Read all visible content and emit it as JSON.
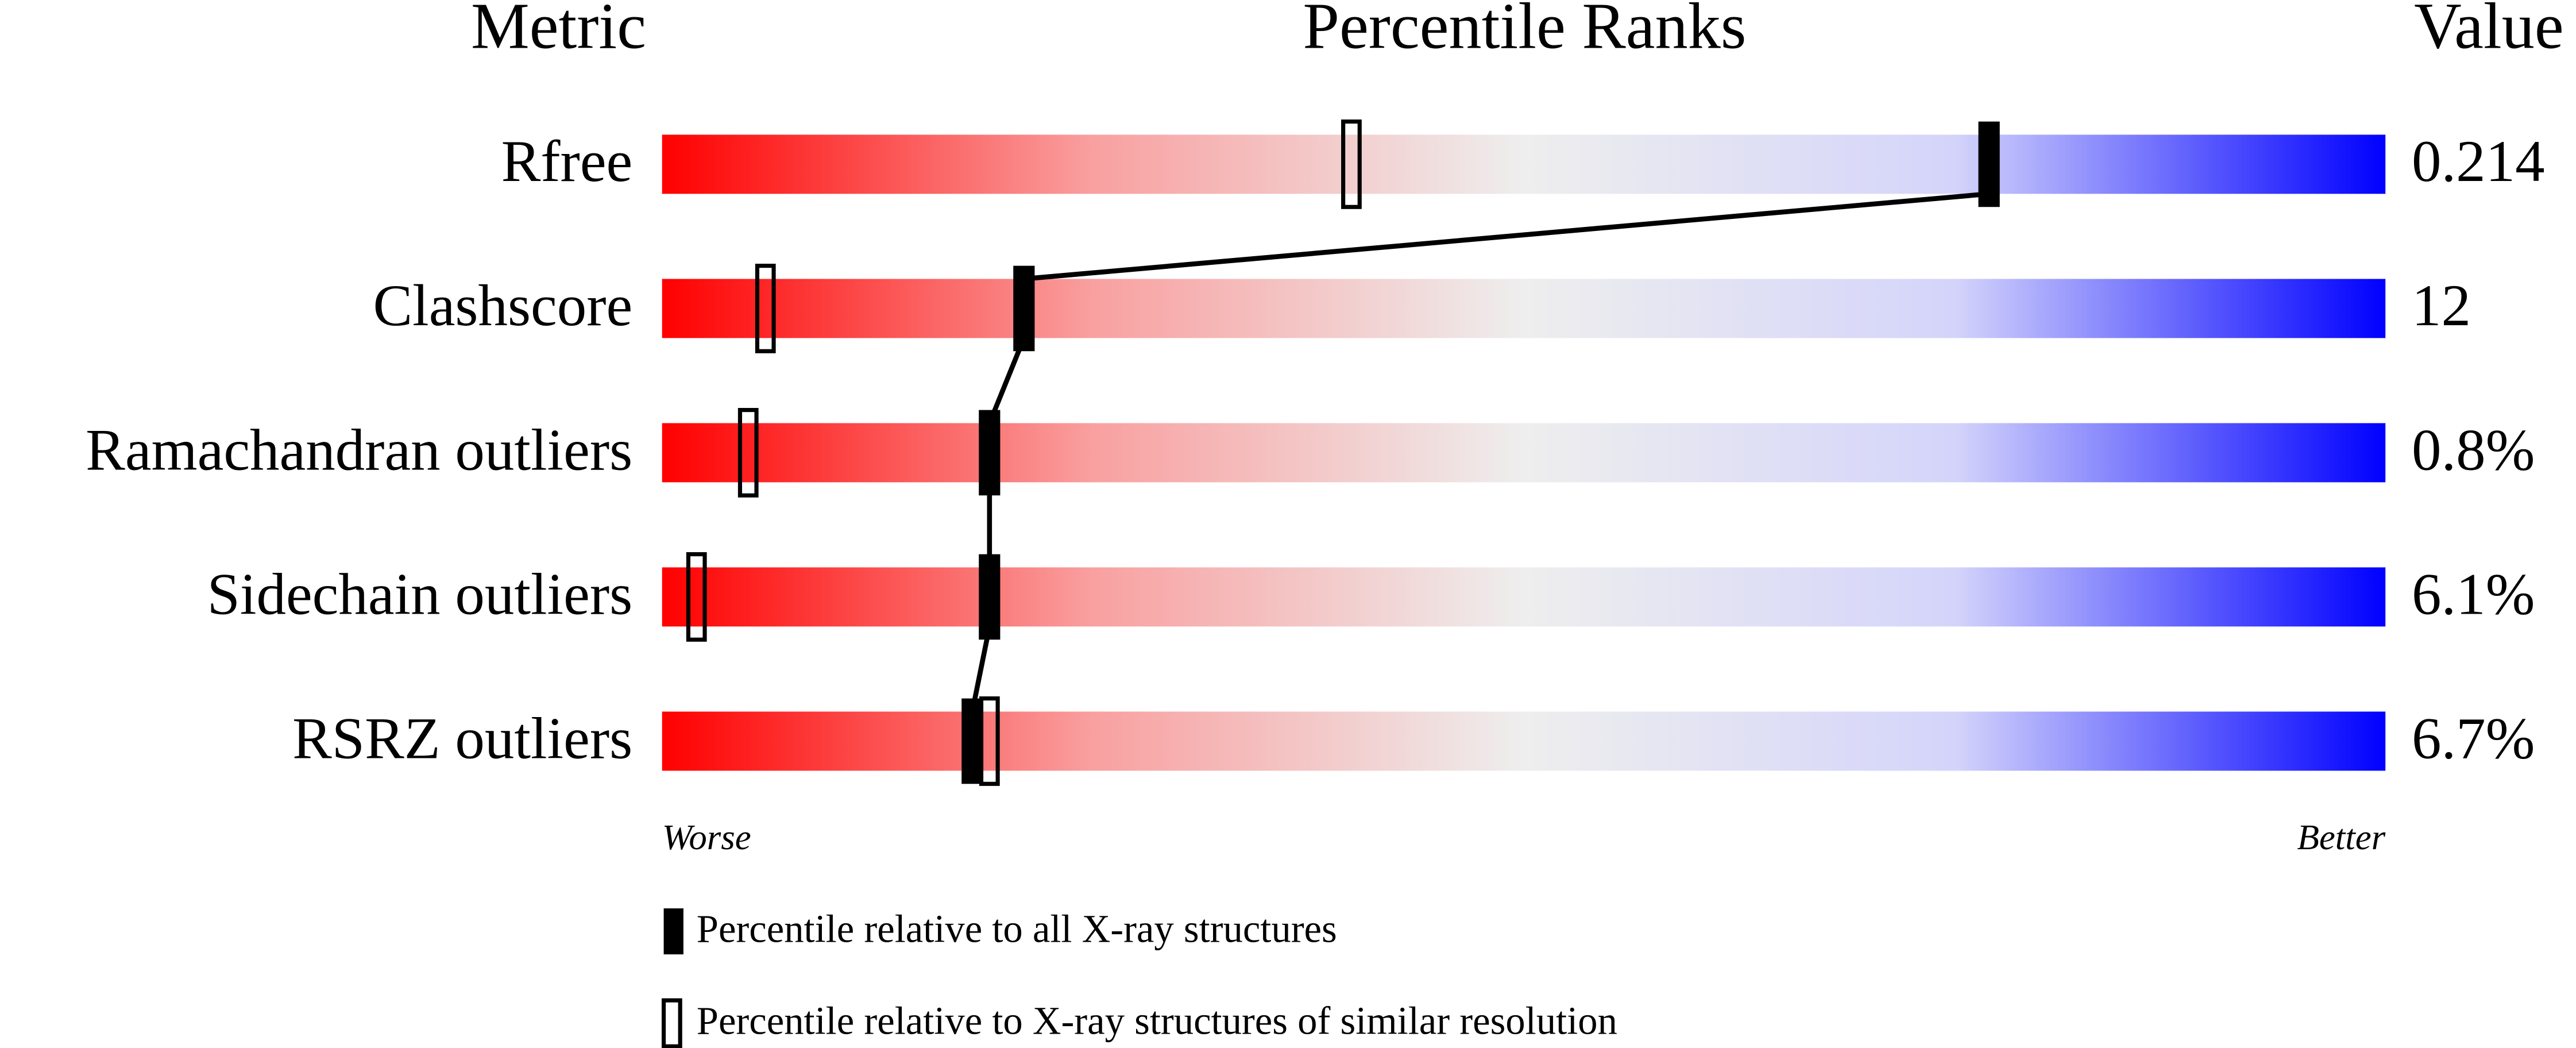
{
  "chart_data": {
    "type": "percentile",
    "headers": [
      "Metric",
      "Percentile Ranks",
      "Value"
    ],
    "categories": [
      "Rfree",
      "Clashscore",
      "Ramachandran outliers",
      "Sidechain outliers",
      "RSRZ outliers"
    ],
    "printed_values": [
      "0.214",
      "12",
      "0.8%",
      "6.1%",
      "6.7%"
    ],
    "xlim": [
      0,
      100
    ],
    "axis_labels": [
      "Worse",
      "Better"
    ],
    "gradient": [
      "#ff0000",
      "#f9a0a0",
      "#eeeeee",
      "#d4d4fb",
      "#0000ff"
    ],
    "series": [
      {
        "name": "Percentile relative to all X-ray structures",
        "color": "#000000",
        "filled": true,
        "values": [
          77,
          21,
          19,
          19,
          18
        ]
      },
      {
        "name": "Percentile relative to X-ray structures of similar resolution",
        "color": "#000000",
        "filled": false,
        "values": [
          40,
          6,
          5,
          2,
          19
        ]
      }
    ]
  }
}
